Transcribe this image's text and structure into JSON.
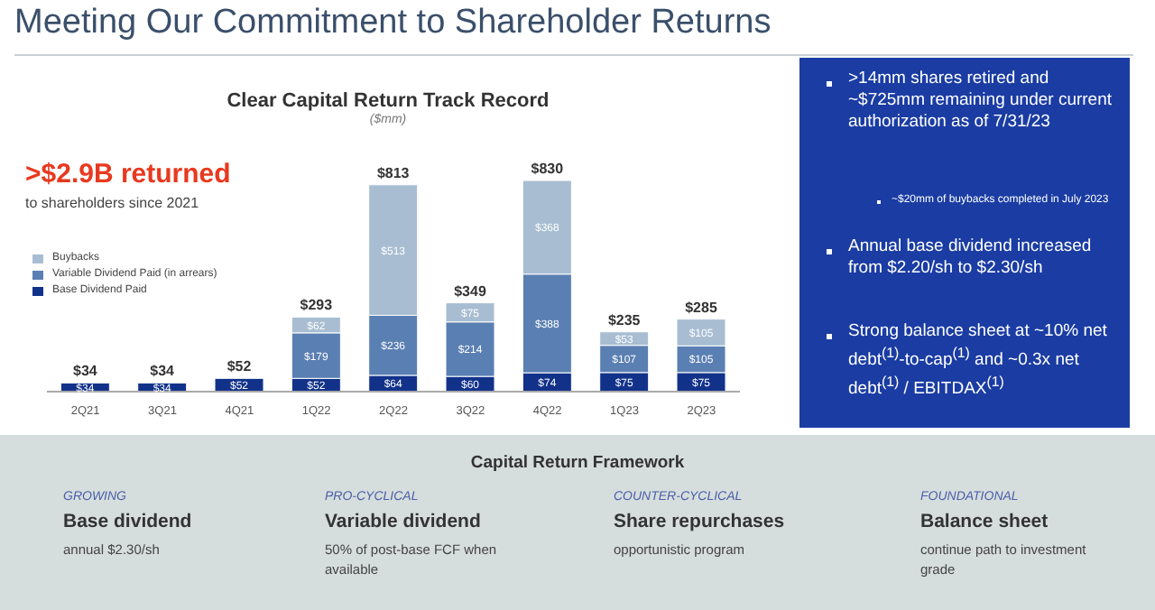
{
  "chart_data": {
    "type": "bar",
    "stacked": true,
    "title": "Clear Capital Return Track Record",
    "subtitle": "($mm)",
    "categories": [
      "2Q21",
      "3Q21",
      "4Q21",
      "1Q22",
      "2Q22",
      "3Q22",
      "4Q22",
      "1Q23",
      "2Q23"
    ],
    "series": [
      {
        "name": "Base Dividend Paid",
        "color": "#12328a",
        "values": [
          34,
          34,
          52,
          52,
          64,
          60,
          74,
          75,
          75
        ],
        "value_labels": [
          "$34",
          "$34",
          "$52",
          "$52",
          "$64",
          "$60",
          "$74",
          "$75",
          "$75"
        ]
      },
      {
        "name": "Variable Dividend Paid (in arrears)",
        "color": "#5a7fb2",
        "values": [
          null,
          null,
          null,
          179,
          236,
          214,
          388,
          107,
          105
        ],
        "value_labels": [
          null,
          null,
          null,
          "$179",
          "$236",
          "$214",
          "$388",
          "$107",
          "$105"
        ]
      },
      {
        "name": "Buybacks",
        "color": "#a8bdd2",
        "values": [
          null,
          null,
          null,
          62,
          513,
          75,
          368,
          53,
          105
        ],
        "value_labels": [
          null,
          null,
          null,
          "$62",
          "$513",
          "$75",
          "$368",
          "$53",
          "$105"
        ]
      }
    ],
    "totals": [
      "$34",
      "$34",
      "$52",
      "$293",
      "$813",
      "$349",
      "$830",
      "$235",
      "$285"
    ],
    "legend": "top left",
    "annotations": [
      "Meeting Our Commitment to Shareholder Returns",
      ">$2.9B returned",
      "to shareholders since 2021",
      ">14mm shares retired and ~$725mm remaining under current authorization as of 7/31/23",
      "~$20mm of buybacks completed in July 2023",
      "Annual base dividend increased from $2.20/sh to $2.30/sh",
      "Strong balance sheet at ~10% net debt$^{(1)}$-to-cap$^{(1)}$ and ~0.3x net debt$^{(1)}$ / EBITDAX$^{(1)}$",
      "Capital Return Framework",
      "GROWING",
      "Base dividend",
      "annual $2.30/sh",
      "PRO-CYCLICAL",
      "Variable dividend",
      "50% of post-base FCF when available",
      "COUNTER-CYCLICAL",
      "Share repurchases",
      "opportunistic program",
      "FOUNDATIONAL",
      "Balance sheet",
      "continue path to investment grade"
    ]
  }
}
